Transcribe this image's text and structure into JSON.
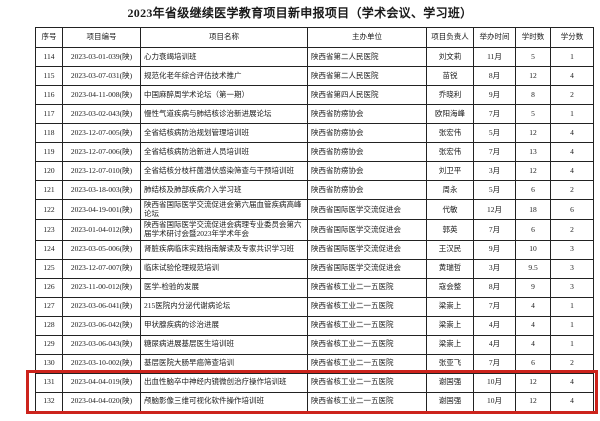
{
  "page": {
    "title": "2023年省级继续医学教育项目新申报项目（学术会议、学习班）"
  },
  "table": {
    "columns": [
      "序号",
      "项目编号",
      "项目名称",
      "主办单位",
      "项目负责人",
      "举办时间",
      "学时数",
      "学分数"
    ],
    "rows": [
      {
        "no": "114",
        "code": "2023-03-01-039(陕)",
        "name": "心力衰竭培训班",
        "org": "陕西省第二人民医院",
        "leader": "刘文莉",
        "month": "11月",
        "hours": "5",
        "credits": "1",
        "highlight": false
      },
      {
        "no": "115",
        "code": "2023-03-07-031(陕)",
        "name": "规范化老年综合评估技术推广",
        "org": "陕西省第二人民医院",
        "leader": "苗锐",
        "month": "8月",
        "hours": "12",
        "credits": "4",
        "highlight": false
      },
      {
        "no": "116",
        "code": "2023-04-11-008(陕)",
        "name": "中国麻醉周学术论坛（第一期）",
        "org": "陕西省第四人民医院",
        "leader": "乔晓利",
        "month": "9月",
        "hours": "8",
        "credits": "2",
        "highlight": false
      },
      {
        "no": "117",
        "code": "2023-03-02-043(陕)",
        "name": "慢性气道疾病与肺结核诊治新进展论坛",
        "org": "陕西省防痨协会",
        "leader": "欧阳海峰",
        "month": "7月",
        "hours": "5",
        "credits": "1",
        "highlight": false
      },
      {
        "no": "118",
        "code": "2023-12-07-005(陕)",
        "name": "全省结核病防治规划管理培训班",
        "org": "陕西省防痨协会",
        "leader": "张宏伟",
        "month": "5月",
        "hours": "12",
        "credits": "4",
        "highlight": false
      },
      {
        "no": "119",
        "code": "2023-12-07-006(陕)",
        "name": "全省结核病防治新进人员培训班",
        "org": "陕西省防痨协会",
        "leader": "张宏伟",
        "month": "7月",
        "hours": "13",
        "credits": "4",
        "highlight": false
      },
      {
        "no": "120",
        "code": "2023-12-07-010(陕)",
        "name": "全省结核分枝杆菌潜伏感染筛查与干预培训班",
        "org": "陕西省防痨协会",
        "leader": "刘卫平",
        "month": "3月",
        "hours": "12",
        "credits": "4",
        "highlight": false
      },
      {
        "no": "121",
        "code": "2023-03-18-003(陕)",
        "name": "肺结核及肺部疾病介入学习班",
        "org": "陕西省防痨协会",
        "leader": "周永",
        "month": "5月",
        "hours": "6",
        "credits": "2",
        "highlight": false
      },
      {
        "no": "122",
        "code": "2023-04-19-001(陕)",
        "name": "陕西省国际医学交流促进会第六届血管疾病高峰论坛",
        "org": "陕西省国际医学交流促进会",
        "leader": "代敏",
        "month": "12月",
        "hours": "18",
        "credits": "6",
        "highlight": false
      },
      {
        "no": "123",
        "code": "2023-01-04-012(陕)",
        "name": "陕西省国际医学交流促进会病理专业委员会第六届学术研讨会暨2023年学术年会",
        "org": "陕西省国际医学交流促进会",
        "leader": "郭英",
        "month": "7月",
        "hours": "6",
        "credits": "2",
        "highlight": false
      },
      {
        "no": "124",
        "code": "2023-03-05-006(陕)",
        "name": "肾脏疾病临床实践指南解读及专家共识学习班",
        "org": "陕西省国际医学交流促进会",
        "leader": "王汉民",
        "month": "9月",
        "hours": "10",
        "credits": "3",
        "highlight": false
      },
      {
        "no": "125",
        "code": "2023-12-07-007(陕)",
        "name": "临床试验伦理规范培训",
        "org": "陕西省国际医学交流促进会",
        "leader": "黄瑞哲",
        "month": "3月",
        "hours": "9.5",
        "credits": "3",
        "highlight": false
      },
      {
        "no": "126",
        "code": "2023-11-00-012(陕)",
        "name": "医学-检验的发展",
        "org": "陕西省核工业二一五医院",
        "leader": "寇会整",
        "month": "8月",
        "hours": "9",
        "credits": "3",
        "highlight": false
      },
      {
        "no": "127",
        "code": "2023-03-06-041(陕)",
        "name": "215医院内分泌代谢病论坛",
        "org": "陕西省核工业二一五医院",
        "leader": "梁崇上",
        "month": "7月",
        "hours": "4",
        "credits": "1",
        "highlight": false
      },
      {
        "no": "128",
        "code": "2023-03-06-042(陕)",
        "name": "甲状腺疾病的诊治进展",
        "org": "陕西省核工业二一五医院",
        "leader": "梁崇上",
        "month": "4月",
        "hours": "4",
        "credits": "1",
        "highlight": false
      },
      {
        "no": "129",
        "code": "2023-03-06-043(陕)",
        "name": "糖尿病进展基层医生培训班",
        "org": "陕西省核工业二一五医院",
        "leader": "梁崇上",
        "month": "4月",
        "hours": "4",
        "credits": "1",
        "highlight": false
      },
      {
        "no": "130",
        "code": "2023-03-10-002(陕)",
        "name": "基层医院大肠早癌筛查培训",
        "org": "陕西省核工业二一五医院",
        "leader": "张亚飞",
        "month": "7月",
        "hours": "6",
        "credits": "2",
        "highlight": false
      },
      {
        "no": "131",
        "code": "2023-04-04-019(陕)",
        "name": "出血性脑卒中神经内镜微创治疗操作培训班",
        "org": "陕西省核工业二一五医院",
        "leader": "谢国强",
        "month": "10月",
        "hours": "12",
        "credits": "4",
        "highlight": true
      },
      {
        "no": "132",
        "code": "2023-04-04-020(陕)",
        "name": "颅脑影像三维可视化软件操作培训班",
        "org": "陕西省核工业二一五医院",
        "leader": "谢国强",
        "month": "10月",
        "hours": "12",
        "credits": "4",
        "highlight": true
      }
    ]
  },
  "annotation": {
    "highlight_color": "#cc231c",
    "border_color": "#222222"
  }
}
